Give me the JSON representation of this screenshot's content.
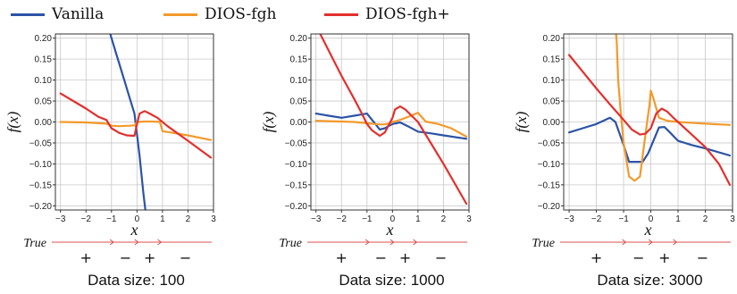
{
  "legend": {
    "items": [
      {
        "label": "Vanilla",
        "color": "#2b53a7"
      },
      {
        "label": "DIOS-fgh",
        "color": "#f39a2b"
      },
      {
        "label": "DIOS-fgh+",
        "color": "#e2302c"
      }
    ]
  },
  "chart_data": [
    {
      "type": "line",
      "caption": "Data size: 100",
      "xlabel": "x",
      "ylabel": "f(x)",
      "xlim": [
        -3.2,
        3.0
      ],
      "ylim": [
        -0.21,
        0.21
      ],
      "xticks": [
        -3,
        -2,
        -1,
        0,
        1,
        2,
        3
      ],
      "xtick_labels": [
        "−3",
        "−2",
        "−1",
        "0",
        "1",
        "2",
        "3"
      ],
      "yticks": [
        0.2,
        0.15,
        0.1,
        0.05,
        0.0,
        -0.05,
        -0.1,
        -0.15,
        -0.2
      ],
      "ytick_labels": [
        "0.20",
        "0.15",
        "0.10",
        "0.05",
        "0.00",
        "−0.05",
        "−0.10",
        "−0.15",
        "−0.20"
      ],
      "grid": true,
      "series": [
        {
          "name": "Vanilla",
          "color": "#2b53a7",
          "x": [
            -1.1,
            -0.8,
            -0.5,
            -0.3,
            -0.1,
            0.0,
            0.1,
            0.25,
            0.35
          ],
          "y": [
            0.22,
            0.16,
            0.1,
            0.06,
            0.02,
            -0.03,
            -0.08,
            -0.17,
            -0.22
          ]
        },
        {
          "name": "DIOS-fgh",
          "color": "#f39a2b",
          "x": [
            -3.0,
            -2.0,
            -1.2,
            -1.0,
            -0.7,
            -0.3,
            -0.1,
            0.0,
            0.3,
            0.6,
            0.9,
            1.0,
            1.3,
            2.0,
            2.9
          ],
          "y": [
            0.0,
            -0.001,
            -0.004,
            -0.009,
            -0.01,
            -0.009,
            -0.008,
            0.0,
            0.001,
            0.001,
            0.0,
            -0.022,
            -0.025,
            -0.032,
            -0.043
          ]
        },
        {
          "name": "DIOS-fgh+",
          "color": "#e2302c",
          "x": [
            -3.0,
            -2.5,
            -2.0,
            -1.5,
            -1.2,
            -1.0,
            -0.7,
            -0.4,
            -0.1,
            0.0,
            0.1,
            0.3,
            0.5,
            0.8,
            1.2,
            2.0,
            2.9
          ],
          "y": [
            0.068,
            0.05,
            0.032,
            0.012,
            0.005,
            -0.015,
            -0.026,
            -0.032,
            -0.033,
            -0.005,
            0.02,
            0.026,
            0.02,
            0.01,
            -0.01,
            -0.045,
            -0.085
          ]
        }
      ]
    },
    {
      "type": "line",
      "caption": "Data size: 1000",
      "xlabel": "x",
      "ylabel": "f(x)",
      "xlim": [
        -3.2,
        3.0
      ],
      "ylim": [
        -0.21,
        0.21
      ],
      "xticks": [
        -3,
        -2,
        -1,
        0,
        1,
        2,
        3
      ],
      "xtick_labels": [
        "−3",
        "−2",
        "−1",
        "0",
        "1",
        "2",
        "3"
      ],
      "yticks": [
        0.2,
        0.15,
        0.1,
        0.05,
        0.0,
        -0.05,
        -0.1,
        -0.15,
        -0.2
      ],
      "ytick_labels": [
        "0.20",
        "0.15",
        "0.10",
        "0.05",
        "0.00",
        "−0.05",
        "−0.10",
        "−0.15",
        "−0.20"
      ],
      "grid": true,
      "series": [
        {
          "name": "Vanilla",
          "color": "#2b53a7",
          "x": [
            -3.0,
            -2.5,
            -2.0,
            -1.5,
            -1.0,
            -0.8,
            -0.5,
            -0.3,
            -0.1,
            0.0,
            0.3,
            0.6,
            1.0,
            1.5,
            2.0,
            2.9
          ],
          "y": [
            0.02,
            0.015,
            0.01,
            0.015,
            0.02,
            0.005,
            -0.018,
            -0.015,
            -0.008,
            -0.005,
            -0.001,
            -0.01,
            -0.023,
            -0.027,
            -0.032,
            -0.04
          ]
        },
        {
          "name": "DIOS-fgh",
          "color": "#f39a2b",
          "x": [
            -3.0,
            -2.5,
            -2.0,
            -1.5,
            -1.0,
            -0.7,
            -0.4,
            -0.1,
            0.0,
            0.3,
            0.6,
            1.0,
            1.3,
            1.8,
            2.3,
            2.9
          ],
          "y": [
            0.003,
            0.002,
            0.001,
            0.0,
            -0.003,
            -0.005,
            -0.006,
            -0.004,
            0.0,
            0.005,
            0.012,
            0.022,
            0.001,
            -0.005,
            -0.015,
            -0.035
          ]
        },
        {
          "name": "DIOS-fgh+",
          "color": "#e2302c",
          "x": [
            -3.0,
            -2.0,
            -1.5,
            -1.2,
            -1.0,
            -0.8,
            -0.5,
            -0.3,
            0.0,
            0.1,
            0.3,
            0.5,
            0.8,
            1.0,
            1.5,
            2.0,
            2.9
          ],
          "y": [
            0.23,
            0.11,
            0.055,
            0.02,
            -0.005,
            -0.02,
            -0.033,
            -0.025,
            0.01,
            0.03,
            0.037,
            0.03,
            0.012,
            0.0,
            -0.05,
            -0.1,
            -0.195
          ]
        }
      ]
    },
    {
      "type": "line",
      "caption": "Data size: 3000",
      "xlabel": "x",
      "ylabel": "f(x)",
      "xlim": [
        -3.2,
        3.0
      ],
      "ylim": [
        -0.21,
        0.21
      ],
      "xticks": [
        -3,
        -2,
        -1,
        0,
        1,
        2,
        3
      ],
      "xtick_labels": [
        "−3",
        "−2",
        "−1",
        "0",
        "1",
        "2",
        "3"
      ],
      "yticks": [
        0.2,
        0.15,
        0.1,
        0.05,
        0.0,
        -0.05,
        -0.1,
        -0.15,
        -0.2
      ],
      "ytick_labels": [
        "0.20",
        "0.15",
        "0.10",
        "0.05",
        "0.00",
        "−0.05",
        "−0.10",
        "−0.15",
        "−0.20"
      ],
      "grid": true,
      "series": [
        {
          "name": "Vanilla",
          "color": "#2b53a7",
          "x": [
            -3.0,
            -2.5,
            -2.0,
            -1.5,
            -1.3,
            -1.0,
            -0.8,
            -0.5,
            -0.3,
            -0.1,
            0.0,
            0.3,
            0.5,
            0.7,
            1.0,
            1.5,
            2.0,
            2.9
          ],
          "y": [
            -0.025,
            -0.015,
            -0.005,
            0.01,
            0.0,
            -0.055,
            -0.095,
            -0.095,
            -0.095,
            -0.075,
            -0.06,
            -0.013,
            -0.012,
            -0.025,
            -0.045,
            -0.055,
            -0.063,
            -0.08
          ]
        },
        {
          "name": "DIOS-fgh",
          "color": "#f39a2b",
          "x": [
            -1.3,
            -1.25,
            -1.2,
            -1.1,
            -1.0,
            -0.8,
            -0.6,
            -0.4,
            -0.2,
            -0.05,
            0.0,
            0.1,
            0.3,
            0.6,
            1.0,
            2.0,
            2.9
          ],
          "y": [
            0.23,
            0.19,
            0.1,
            0.02,
            -0.05,
            -0.13,
            -0.14,
            -0.13,
            -0.03,
            0.04,
            0.075,
            0.055,
            0.01,
            0.003,
            0.0,
            -0.004,
            -0.007
          ]
        },
        {
          "name": "DIOS-fgh+",
          "color": "#e2302c",
          "x": [
            -3.0,
            -2.5,
            -2.0,
            -1.5,
            -1.0,
            -0.7,
            -0.4,
            -0.2,
            0.0,
            0.2,
            0.4,
            0.6,
            0.8,
            1.0,
            1.5,
            2.0,
            2.5,
            2.9
          ],
          "y": [
            0.16,
            0.12,
            0.08,
            0.042,
            0.005,
            -0.018,
            -0.03,
            -0.028,
            -0.015,
            0.02,
            0.032,
            0.025,
            0.012,
            0.0,
            -0.03,
            -0.06,
            -0.1,
            -0.15
          ]
        }
      ]
    }
  ],
  "true_axis": [
    {
      "label": "True",
      "signs": [
        "+",
        "−",
        "+",
        "−"
      ]
    },
    {
      "label": "True",
      "signs": [
        "+",
        "−",
        "+",
        "−"
      ]
    },
    {
      "label": "True",
      "signs": [
        "+",
        "−",
        "+",
        "−"
      ]
    }
  ],
  "true_axis_color": "#d9534f"
}
